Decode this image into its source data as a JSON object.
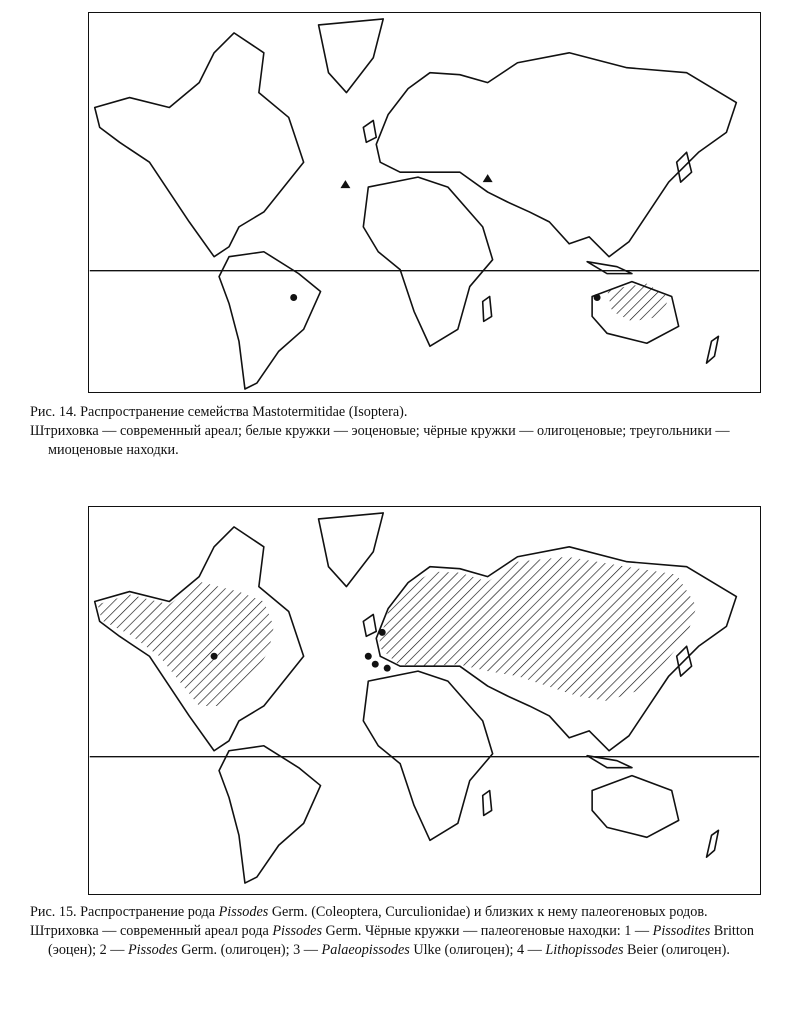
{
  "figure14": {
    "caption_title": "Рис. 14. Распространение семейства Mastotermitidae (Isoptera).",
    "caption_legend": "Штриховка — современный ареал; белые кружки — эоценовые; чёрные кружки — олигоценовые; треугольники — миоценовые находки.",
    "map": {
      "range_hatched": [
        "northern Australia"
      ],
      "black_circles": [
        "Brazil",
        "Australia"
      ],
      "triangles": [
        "Europe"
      ]
    }
  },
  "figure15": {
    "caption_title_1": "Рис. 15. Распространение рода ",
    "caption_title_genus": "Pissodes",
    "caption_title_2": " Germ. (Coleoptera, Curculionidae) и близких к нему палеогеновых родов.",
    "legend": {
      "t1": "Штриховка — современный ареал рода ",
      "g1": "Pissodes",
      "t2": " Germ. Чёрные кружки — палеогеновые находки: 1 — ",
      "g2": "Pissodites",
      "t3": " Britton (эоцен); 2 — ",
      "g3": "Pissodes",
      "t4": " Germ. (олигоцен); 3 — ",
      "g4": "Palaeopissodes",
      "t5": " Ulke (олигоцен); 4 — ",
      "g5": "Lithopissodes",
      "t6": " Beier (олигоцен)."
    },
    "map": {
      "range_hatched": [
        "North America",
        "Eurasia"
      ],
      "points": [
        "1",
        "2",
        "3",
        "4"
      ]
    }
  }
}
